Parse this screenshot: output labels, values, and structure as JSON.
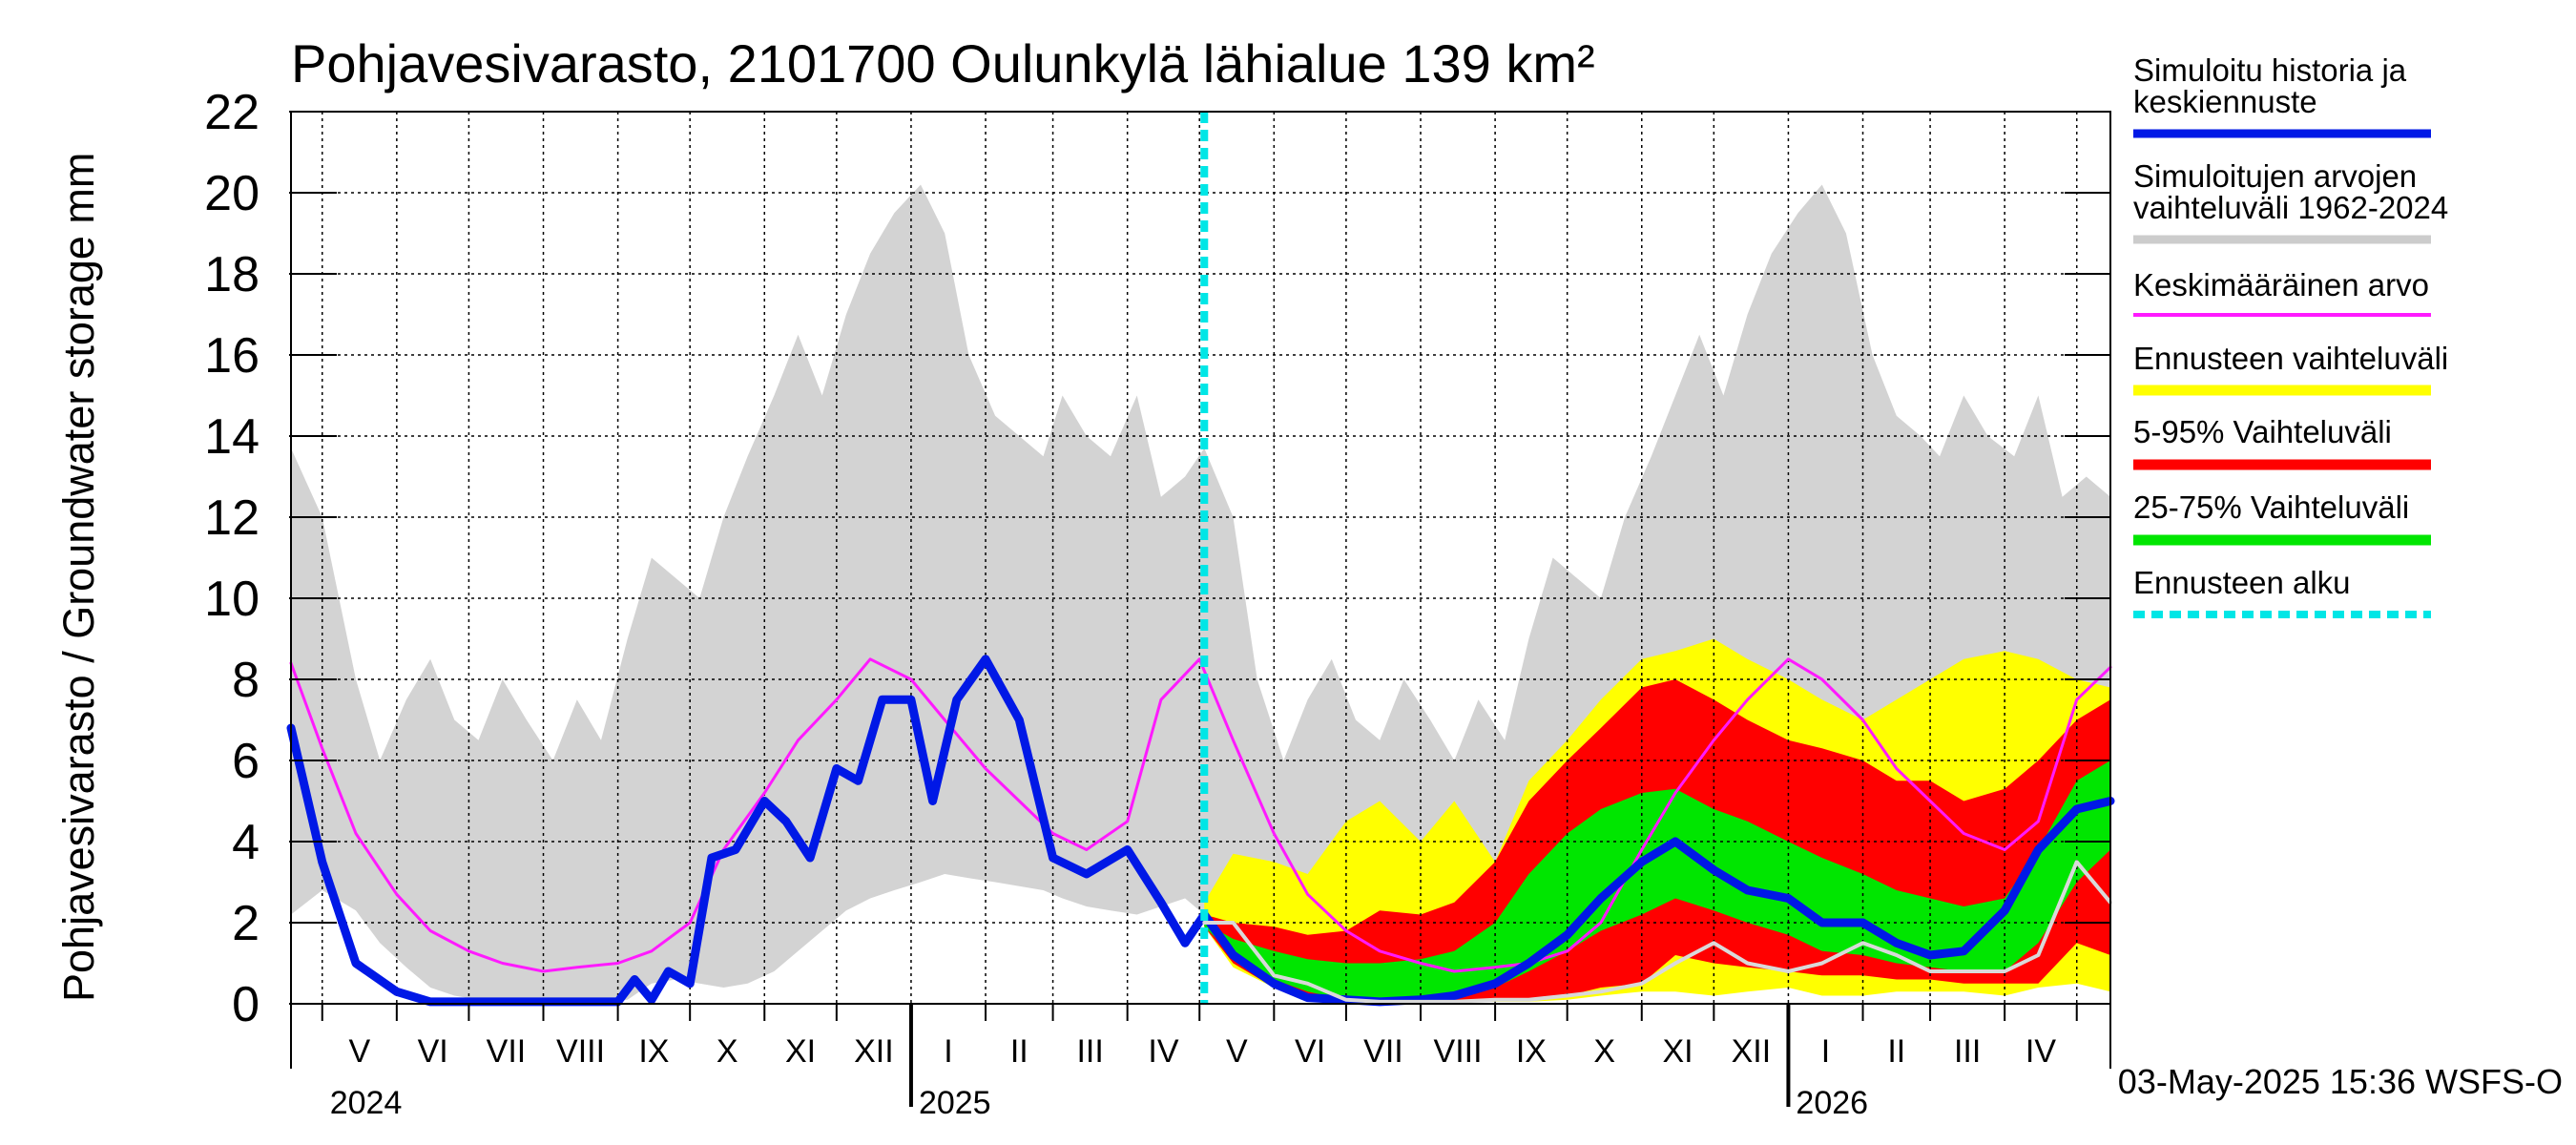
{
  "chart_data": {
    "type": "area",
    "title": "Pohjavesivarasto, 2101700 Oulunkylä lähialue 139 km²",
    "ylabel": "Pohjavesivarasto / Groundwater storage   mm",
    "ylim": [
      0,
      22
    ],
    "yticks": [
      0,
      2,
      4,
      6,
      8,
      10,
      12,
      14,
      16,
      18,
      20,
      22
    ],
    "x_start": "2024-04-18",
    "x_end": "2026-05-15",
    "forecast_start": "2025-05-03",
    "timestamp": "03-May-2025 15:36 WSFS-O",
    "grid": true,
    "legend_position": "right",
    "months": [
      {
        "label": "V",
        "start": "2024-05-01"
      },
      {
        "label": "VI",
        "start": "2024-06-01"
      },
      {
        "label": "VII",
        "start": "2024-07-01"
      },
      {
        "label": "VIII",
        "start": "2024-08-01"
      },
      {
        "label": "IX",
        "start": "2024-09-01"
      },
      {
        "label": "X",
        "start": "2024-10-01"
      },
      {
        "label": "XI",
        "start": "2024-11-01"
      },
      {
        "label": "XII",
        "start": "2024-12-01"
      },
      {
        "label": "I",
        "start": "2025-01-01"
      },
      {
        "label": "II",
        "start": "2025-02-01"
      },
      {
        "label": "III",
        "start": "2025-03-01"
      },
      {
        "label": "IV",
        "start": "2025-04-01"
      },
      {
        "label": "V",
        "start": "2025-05-01"
      },
      {
        "label": "VI",
        "start": "2025-06-01"
      },
      {
        "label": "VII",
        "start": "2025-07-01"
      },
      {
        "label": "VIII",
        "start": "2025-08-01"
      },
      {
        "label": "IX",
        "start": "2025-09-01"
      },
      {
        "label": "X",
        "start": "2025-10-01"
      },
      {
        "label": "XI",
        "start": "2025-11-01"
      },
      {
        "label": "XII",
        "start": "2025-12-01"
      },
      {
        "label": "I",
        "start": "2026-01-01"
      },
      {
        "label": "II",
        "start": "2026-02-01"
      },
      {
        "label": "III",
        "start": "2026-03-01"
      },
      {
        "label": "IV",
        "start": "2026-04-01"
      },
      {
        "label": "",
        "start": "2026-05-01"
      }
    ],
    "years": [
      {
        "label": "2024",
        "start": "2024-05-01"
      },
      {
        "label": "2025",
        "start": "2025-01-01"
      },
      {
        "label": "2026",
        "start": "2026-01-01"
      }
    ],
    "legend": [
      {
        "label": "Simuloitu historia ja keskiennuste",
        "color": "#0018e6"
      },
      {
        "label": "Simuloitujen arvojen vaihteluväli 1962-2024",
        "color": "#cccccc"
      },
      {
        "label": "Keskimääräinen arvo",
        "color": "#ff1aff"
      },
      {
        "label": "Ennusteen vaihteluväli",
        "color": "#ffff00"
      },
      {
        "label": "5-95% Vaihteluväli",
        "color": "#ff0000"
      },
      {
        "label": "25-75% Vaihteluväli",
        "color": "#00e600"
      },
      {
        "label": "Ennusteen alku",
        "color": "#00e6e6"
      }
    ],
    "series": [
      {
        "name": "Simuloitujen arvojen vaihteluväli 1962-2024",
        "kind": "band",
        "color": "#d3d3d3",
        "x": [
          "2024-04-18",
          "2024-05-01",
          "2024-05-15",
          "2024-05-25",
          "2024-06-05",
          "2024-06-15",
          "2024-06-25",
          "2024-07-05",
          "2024-07-15",
          "2024-07-25",
          "2024-08-05",
          "2024-08-15",
          "2024-08-25",
          "2024-09-05",
          "2024-09-15",
          "2024-09-25",
          "2024-10-05",
          "2024-10-15",
          "2024-10-25",
          "2024-11-05",
          "2024-11-15",
          "2024-11-25",
          "2024-12-05",
          "2024-12-15",
          "2024-12-25",
          "2025-01-05",
          "2025-01-15",
          "2025-01-25",
          "2025-02-05",
          "2025-02-15",
          "2025-02-25",
          "2025-03-05",
          "2025-03-15",
          "2025-03-25",
          "2025-04-05",
          "2025-04-15",
          "2025-04-25",
          "2025-05-03",
          "2025-05-15",
          "2025-05-25",
          "2025-06-05",
          "2025-06-15",
          "2025-06-25",
          "2025-07-05",
          "2025-07-15",
          "2025-07-25",
          "2025-08-05",
          "2025-08-15",
          "2025-08-25",
          "2025-09-05",
          "2025-09-15",
          "2025-09-25",
          "2025-10-05",
          "2025-10-15",
          "2025-10-25",
          "2025-11-05",
          "2025-11-15",
          "2025-11-25",
          "2025-12-05",
          "2025-12-15",
          "2025-12-25",
          "2026-01-05",
          "2026-01-15",
          "2026-01-25",
          "2026-02-05",
          "2026-02-15",
          "2026-02-25",
          "2026-03-05",
          "2026-03-15",
          "2026-03-25",
          "2026-04-05",
          "2026-04-15",
          "2026-04-25",
          "2026-05-05",
          "2026-05-15"
        ],
        "lower": [
          2.2,
          2.8,
          2.3,
          1.5,
          0.9,
          0.4,
          0.2,
          0.1,
          0.05,
          0.05,
          0.05,
          0.05,
          0.05,
          0.1,
          0.5,
          0.6,
          0.5,
          0.4,
          0.5,
          0.8,
          1.3,
          1.8,
          2.3,
          2.6,
          2.8,
          3.0,
          3.2,
          3.1,
          3.0,
          2.9,
          2.8,
          2.6,
          2.4,
          2.3,
          2.2,
          2.4,
          2.6,
          2.2,
          2.8,
          2.3,
          1.5,
          0.9,
          0.4,
          0.2,
          0.1,
          0.05,
          0.05,
          0.05,
          0.05,
          0.1,
          0.5,
          0.6,
          0.5,
          0.4,
          0.5,
          0.8,
          1.3,
          1.8,
          2.3,
          2.6,
          2.8,
          3.0,
          3.2,
          3.1,
          3.0,
          2.9,
          2.8,
          2.6,
          2.4,
          2.3,
          2.2,
          2.4,
          2.6,
          2.5,
          2.4
        ],
        "upper": [
          13.7,
          12.0,
          8.0,
          6.0,
          7.5,
          8.5,
          7.0,
          6.5,
          8.0,
          7.0,
          6.0,
          7.5,
          6.5,
          9.0,
          11.0,
          10.5,
          10.0,
          12.0,
          13.5,
          15.0,
          16.5,
          15.0,
          17.0,
          18.5,
          19.5,
          20.2,
          19.0,
          16.0,
          14.5,
          14.0,
          13.5,
          15.0,
          14.0,
          13.5,
          15.0,
          12.5,
          13.0,
          13.7,
          12.0,
          8.0,
          6.0,
          7.5,
          8.5,
          7.0,
          6.5,
          8.0,
          7.0,
          6.0,
          7.5,
          6.5,
          9.0,
          11.0,
          10.5,
          10.0,
          12.0,
          13.5,
          15.0,
          16.5,
          15.0,
          17.0,
          18.5,
          19.5,
          20.2,
          19.0,
          16.0,
          14.5,
          14.0,
          13.5,
          15.0,
          14.0,
          13.5,
          15.0,
          12.5,
          13.0,
          12.5
        ]
      },
      {
        "name": "Ennusteen vaihteluväli",
        "kind": "band",
        "color": "#ffff00",
        "x": [
          "2025-05-03",
          "2025-05-15",
          "2025-06-01",
          "2025-06-15",
          "2025-07-01",
          "2025-07-15",
          "2025-08-01",
          "2025-08-15",
          "2025-09-01",
          "2025-09-15",
          "2025-10-01",
          "2025-10-15",
          "2025-11-01",
          "2025-11-15",
          "2025-12-01",
          "2025-12-15",
          "2026-01-01",
          "2026-01-15",
          "2026-02-01",
          "2026-02-15",
          "2026-03-01",
          "2026-03-15",
          "2026-04-01",
          "2026-04-15",
          "2026-05-01",
          "2026-05-15"
        ],
        "lower": [
          1.9,
          0.9,
          0.4,
          0.1,
          0.05,
          0.05,
          0.05,
          0.05,
          0.05,
          0.05,
          0.1,
          0.2,
          0.3,
          0.3,
          0.2,
          0.3,
          0.4,
          0.2,
          0.2,
          0.3,
          0.3,
          0.3,
          0.2,
          0.4,
          0.5,
          0.3
        ],
        "upper": [
          2.5,
          3.7,
          3.5,
          3.2,
          4.5,
          5.0,
          4.0,
          5.0,
          3.5,
          5.5,
          6.5,
          7.5,
          8.5,
          8.7,
          9.0,
          8.5,
          8.0,
          7.5,
          7.0,
          7.5,
          8.0,
          8.5,
          8.7,
          8.5,
          8.0,
          7.8
        ]
      },
      {
        "name": "5-95% Vaihteluväli",
        "kind": "band",
        "color": "#ff0000",
        "x": [
          "2025-05-03",
          "2025-05-15",
          "2025-06-01",
          "2025-06-15",
          "2025-07-01",
          "2025-07-15",
          "2025-08-01",
          "2025-08-15",
          "2025-09-01",
          "2025-09-15",
          "2025-10-01",
          "2025-10-15",
          "2025-11-01",
          "2025-11-15",
          "2025-12-01",
          "2025-12-15",
          "2026-01-01",
          "2026-01-15",
          "2026-02-01",
          "2026-02-15",
          "2026-03-01",
          "2026-03-15",
          "2026-04-01",
          "2026-04-15",
          "2026-05-01",
          "2026-05-15"
        ],
        "lower": [
          1.9,
          1.0,
          0.4,
          0.2,
          0.1,
          0.05,
          0.05,
          0.05,
          0.1,
          0.1,
          0.2,
          0.4,
          0.5,
          1.2,
          1.0,
          0.9,
          0.8,
          0.7,
          0.7,
          0.6,
          0.6,
          0.5,
          0.5,
          0.5,
          1.5,
          1.2
        ],
        "upper": [
          2.2,
          2.0,
          1.9,
          1.7,
          1.8,
          2.3,
          2.2,
          2.5,
          3.5,
          5.0,
          6.0,
          6.8,
          7.8,
          8.0,
          7.5,
          7.0,
          6.5,
          6.3,
          6.0,
          5.5,
          5.5,
          5.0,
          5.3,
          6.0,
          7.0,
          7.5
        ]
      },
      {
        "name": "25-75% Vaihteluväli",
        "kind": "band",
        "color": "#00e600",
        "x": [
          "2025-05-03",
          "2025-05-15",
          "2025-06-01",
          "2025-06-15",
          "2025-07-01",
          "2025-07-15",
          "2025-08-01",
          "2025-08-15",
          "2025-09-01",
          "2025-09-15",
          "2025-10-01",
          "2025-10-15",
          "2025-11-01",
          "2025-11-15",
          "2025-12-01",
          "2025-12-15",
          "2026-01-01",
          "2026-01-15",
          "2026-02-01",
          "2026-02-15",
          "2026-03-01",
          "2026-03-15",
          "2026-04-01",
          "2026-04-15",
          "2026-05-01",
          "2026-05-15"
        ],
        "lower": [
          1.9,
          1.2,
          0.6,
          0.3,
          0.1,
          0.1,
          0.1,
          0.2,
          0.4,
          0.8,
          1.3,
          1.8,
          2.2,
          2.6,
          2.3,
          2.0,
          1.7,
          1.3,
          1.2,
          1.0,
          0.9,
          0.8,
          0.8,
          1.5,
          3.0,
          3.8
        ],
        "upper": [
          2.0,
          1.6,
          1.3,
          1.1,
          1.0,
          1.0,
          1.1,
          1.3,
          2.0,
          3.2,
          4.2,
          4.8,
          5.2,
          5.3,
          4.8,
          4.5,
          4.0,
          3.6,
          3.2,
          2.8,
          2.6,
          2.4,
          2.6,
          3.8,
          5.5,
          6.0
        ]
      },
      {
        "name": "Keskimääräinen arvo",
        "kind": "line",
        "color": "#ff1aff",
        "width": 3,
        "x": [
          "2024-04-18",
          "2024-05-01",
          "2024-05-15",
          "2024-06-01",
          "2024-06-15",
          "2024-07-01",
          "2024-07-15",
          "2024-08-01",
          "2024-08-15",
          "2024-09-01",
          "2024-09-15",
          "2024-10-01",
          "2024-10-15",
          "2024-11-01",
          "2024-11-15",
          "2024-12-01",
          "2024-12-15",
          "2025-01-01",
          "2025-01-15",
          "2025-02-01",
          "2025-02-15",
          "2025-03-01",
          "2025-03-15",
          "2025-04-01",
          "2025-04-15",
          "2025-05-01",
          "2025-05-15",
          "2025-06-01",
          "2025-06-15",
          "2025-07-01",
          "2025-07-15",
          "2025-08-01",
          "2025-08-15",
          "2025-09-01",
          "2025-09-15",
          "2025-10-01",
          "2025-10-15",
          "2025-11-01",
          "2025-11-15",
          "2025-12-01",
          "2025-12-15",
          "2026-01-01",
          "2026-01-15",
          "2026-02-01",
          "2026-02-15",
          "2026-03-01",
          "2026-03-15",
          "2026-04-01",
          "2026-04-15",
          "2026-05-01",
          "2026-05-15"
        ],
        "y": [
          8.4,
          6.3,
          4.2,
          2.7,
          1.8,
          1.3,
          1.0,
          0.8,
          0.9,
          1.0,
          1.3,
          2.0,
          3.8,
          5.2,
          6.5,
          7.5,
          8.5,
          8.0,
          7.0,
          5.8,
          5.0,
          4.2,
          3.8,
          4.5,
          7.5,
          8.5,
          6.5,
          4.2,
          2.7,
          1.8,
          1.3,
          1.0,
          0.8,
          0.9,
          1.0,
          1.3,
          2.0,
          3.8,
          5.2,
          6.5,
          7.5,
          8.5,
          8.0,
          7.0,
          5.8,
          5.0,
          4.2,
          3.8,
          4.5,
          7.5,
          8.3
        ]
      },
      {
        "name": "Simuloitu historia ja keskiennuste",
        "kind": "line",
        "color": "#0018e6",
        "width": 9,
        "x": [
          "2024-04-18",
          "2024-05-01",
          "2024-05-15",
          "2024-06-01",
          "2024-06-15",
          "2024-07-01",
          "2024-07-15",
          "2024-08-01",
          "2024-08-15",
          "2024-09-01",
          "2024-09-08",
          "2024-09-15",
          "2024-09-22",
          "2024-10-01",
          "2024-10-10",
          "2024-10-20",
          "2024-11-01",
          "2024-11-10",
          "2024-11-20",
          "2024-12-01",
          "2024-12-10",
          "2024-12-20",
          "2025-01-01",
          "2025-01-10",
          "2025-01-20",
          "2025-02-01",
          "2025-02-15",
          "2025-03-01",
          "2025-03-15",
          "2025-04-01",
          "2025-04-15",
          "2025-04-25",
          "2025-05-03",
          "2025-05-15",
          "2025-06-01",
          "2025-06-15",
          "2025-07-01",
          "2025-07-15",
          "2025-08-01",
          "2025-08-15",
          "2025-09-01",
          "2025-09-15",
          "2025-10-01",
          "2025-10-15",
          "2025-11-01",
          "2025-11-15",
          "2025-12-01",
          "2025-12-15",
          "2026-01-01",
          "2026-01-15",
          "2026-02-01",
          "2026-02-15",
          "2026-03-01",
          "2026-03-15",
          "2026-04-01",
          "2026-04-15",
          "2026-05-01",
          "2026-05-15"
        ],
        "y": [
          6.8,
          3.5,
          1.0,
          0.3,
          0.05,
          0.05,
          0.05,
          0.05,
          0.05,
          0.05,
          0.6,
          0.1,
          0.8,
          0.5,
          3.6,
          3.8,
          5.0,
          4.5,
          3.6,
          5.8,
          5.5,
          7.5,
          7.5,
          5.0,
          7.5,
          8.5,
          7.0,
          3.6,
          3.2,
          3.8,
          2.5,
          1.5,
          2.2,
          1.2,
          0.5,
          0.15,
          0.1,
          0.05,
          0.1,
          0.2,
          0.5,
          1.0,
          1.7,
          2.6,
          3.5,
          4.0,
          3.3,
          2.8,
          2.6,
          2.0,
          2.0,
          1.5,
          1.2,
          1.3,
          2.3,
          3.8,
          4.8,
          5.0
        ]
      },
      {
        "name": "",
        "kind": "line",
        "color": "#d9d9d9",
        "width": 4,
        "x": [
          "2025-05-03",
          "2025-05-15",
          "2025-06-01",
          "2025-06-15",
          "2025-07-01",
          "2025-07-15",
          "2025-08-01",
          "2025-08-15",
          "2025-09-01",
          "2025-09-15",
          "2025-10-01",
          "2025-10-15",
          "2025-11-01",
          "2025-11-15",
          "2025-12-01",
          "2025-12-15",
          "2026-01-01",
          "2026-01-15",
          "2026-02-01",
          "2026-02-15",
          "2026-03-01",
          "2026-03-15",
          "2026-04-01",
          "2026-04-15",
          "2026-05-01",
          "2026-05-15"
        ],
        "y": [
          2.0,
          2.0,
          0.7,
          0.5,
          0.1,
          0.05,
          0.05,
          0.05,
          0.1,
          0.1,
          0.2,
          0.3,
          0.5,
          1.0,
          1.5,
          1.0,
          0.8,
          1.0,
          1.5,
          1.2,
          0.8,
          0.8,
          0.8,
          1.2,
          3.5,
          2.5
        ]
      }
    ]
  }
}
